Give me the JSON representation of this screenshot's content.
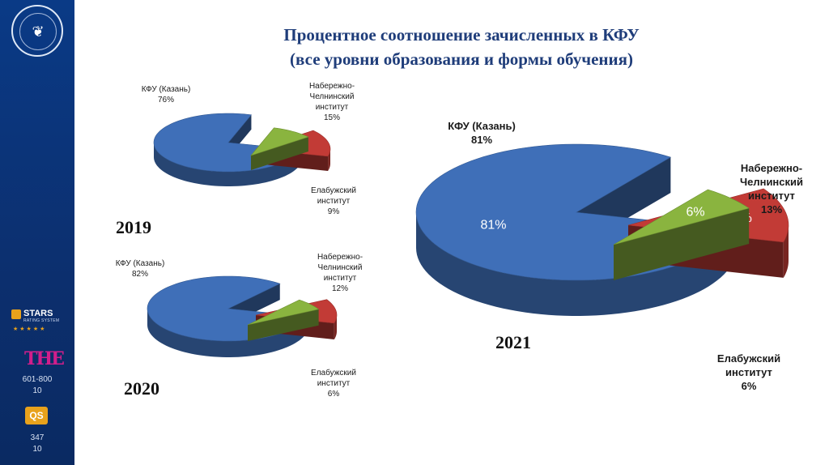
{
  "title": {
    "line1": "Процентное соотношение зачисленных в КФУ",
    "line2": "(все уровни образования и формы обучения)"
  },
  "colors": {
    "kfu": "#3f6fb8",
    "chelny": "#c23b36",
    "elabuga": "#8ab43f",
    "sidebar": "#0c2f6e",
    "title": "#1f3d7a"
  },
  "sidebar": {
    "university_logo_icon": "university-seal-icon",
    "stars_name": "STARS",
    "stars_sub": "RATING SYSTEM",
    "stars_dots": "★★★★★",
    "the_logo": "THE",
    "the_rank": "601-800",
    "the_rank_sub": "10",
    "qs_logo": "QS",
    "qs_rank": "347",
    "qs_rank_sub": "10"
  },
  "chart_data": [
    {
      "type": "pie",
      "year": "2019",
      "slices": [
        {
          "name": "КФУ (Казань)",
          "value": 76,
          "label": "76%"
        },
        {
          "name": "Набережно-Челнинский институт",
          "value": 15,
          "label": "15%"
        },
        {
          "name": "Елабужский институт",
          "value": 9,
          "label": "9%"
        }
      ],
      "labels": {
        "kfu": [
          "КФУ (Казань)",
          "76%"
        ],
        "chelny": [
          "Набережно-",
          "Челнинский",
          "институт",
          "15%"
        ],
        "elabuga": [
          "Елабужский",
          "институт",
          "9%"
        ]
      }
    },
    {
      "type": "pie",
      "year": "2020",
      "slices": [
        {
          "name": "КФУ (Казань)",
          "value": 82,
          "label": "82%"
        },
        {
          "name": "Набережно-Челнинский институт",
          "value": 12,
          "label": "12%"
        },
        {
          "name": "Елабужский институт",
          "value": 6,
          "label": "6%"
        }
      ],
      "labels": {
        "kfu": [
          "КФУ (Казань)",
          "82%"
        ],
        "chelny": [
          "Набережно-",
          "Челнинский",
          "институт",
          "12%"
        ],
        "elabuga": [
          "Елабужский",
          "институт",
          "6%"
        ]
      }
    },
    {
      "type": "pie",
      "year": "2021",
      "slices": [
        {
          "name": "КФУ (Казань)",
          "value": 81,
          "label": "81%"
        },
        {
          "name": "Набережно-Челнинский институт",
          "value": 13,
          "label": "13%"
        },
        {
          "name": "Елабужский институт",
          "value": 6,
          "label": "6%"
        }
      ],
      "labels": {
        "kfu": [
          "КФУ (Казань)",
          "81%"
        ],
        "chelny": [
          "Набережно-",
          "Челнинский",
          "институт",
          "13%"
        ],
        "elabuga": [
          "Елабужский",
          "институт",
          "6%"
        ]
      }
    }
  ]
}
